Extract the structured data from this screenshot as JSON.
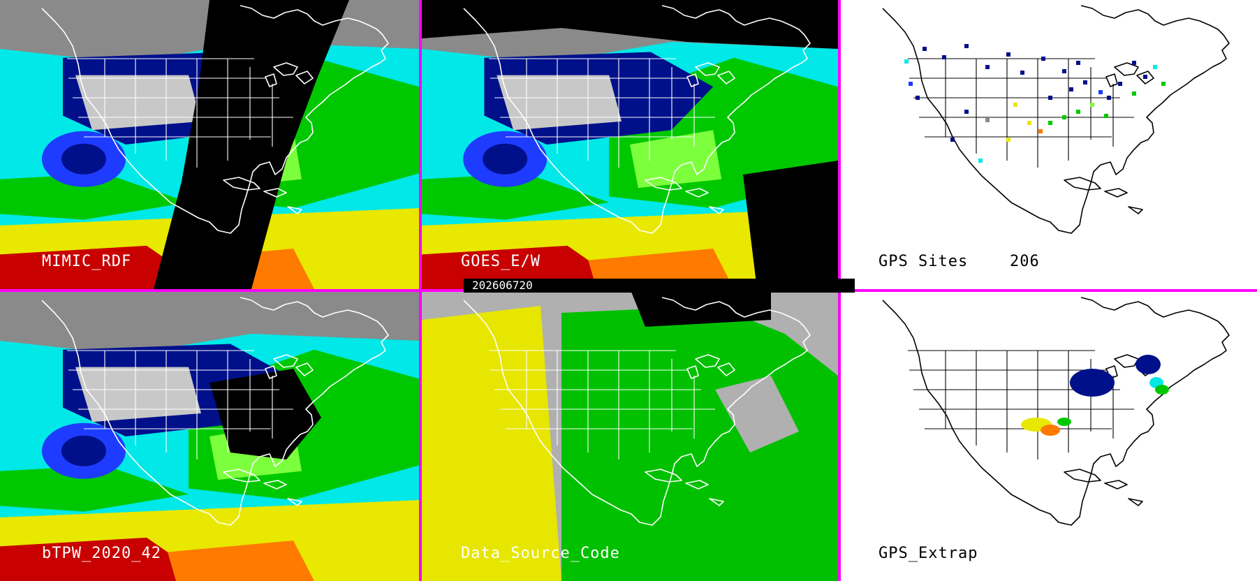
{
  "panels": [
    {
      "id": "mimic",
      "label": "MIMIC_RDF",
      "theme": "dark"
    },
    {
      "id": "goes",
      "label": "GOES_E/W",
      "theme": "dark"
    },
    {
      "id": "gps-sites",
      "label": "GPS Sites",
      "count": "206",
      "theme": "light"
    },
    {
      "id": "btpw",
      "label": "bTPW_2020_42",
      "theme": "dark"
    },
    {
      "id": "source",
      "label": "Data_Source_Code",
      "theme": "dark"
    },
    {
      "id": "gps-extrap",
      "label": "GPS_Extrap",
      "theme": "light"
    }
  ],
  "timestamp": "202606720",
  "colors": {
    "divider": "#ff00ff",
    "tpw_scale": [
      "#8a8a8a",
      "#c8c8c8",
      "#00108a",
      "#1e3cff",
      "#00e8e8",
      "#00c800",
      "#7cff3c",
      "#e8e800",
      "#ff7a00",
      "#c80000"
    ],
    "source_codes": [
      "#e6e600",
      "#00c000",
      "#b0b0b0",
      "#000000"
    ],
    "map_outline_dark": "#ffffff",
    "map_outline_light": "#000000"
  },
  "icons": [
    "coastline-map",
    "state-boundaries",
    "gps-site-marker"
  ]
}
